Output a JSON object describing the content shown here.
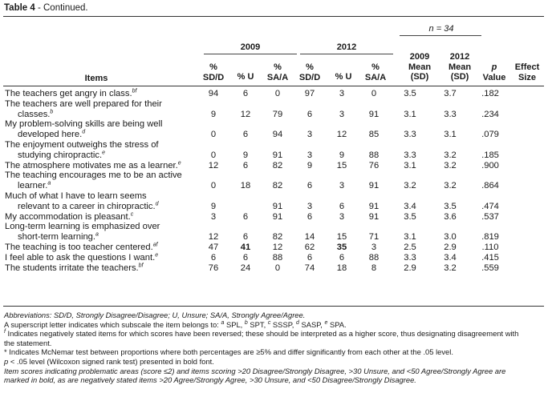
{
  "caption": {
    "label": "Table 4",
    "rest": " - Continued."
  },
  "header": {
    "n_label": "n = 34",
    "year1": "2009",
    "year2": "2012",
    "items": "Items",
    "col_sd1a": "%",
    "col_sd1b": "SD/D",
    "col_u1": "% U",
    "col_sa1a": "%",
    "col_sa1b": "SA/A",
    "col_sd2a": "%",
    "col_sd2b": "SD/D",
    "col_u2": "% U",
    "col_sa2a": "%",
    "col_sa2b": "SA/A",
    "m1a": "2009",
    "m1b": "Mean",
    "m1c": "(SD)",
    "m2a": "2012",
    "m2b": "Mean",
    "m2c": "(SD)",
    "pa": "p",
    "pb": "Value",
    "ea": "Effect",
    "eb": "Size"
  },
  "rows": [
    {
      "l1": "The teachers get angry in class.",
      "sup": "bf",
      "l2": "",
      "v": [
        "94",
        "6",
        "0",
        "97",
        "3",
        "0",
        "3.5",
        "3.7",
        ".182",
        ""
      ],
      "bold": []
    },
    {
      "l1": "The teachers are well prepared for their",
      "sup": "b",
      "l2": "classes.",
      "v": [
        "9",
        "12",
        "79",
        "6",
        "3",
        "91",
        "3.1",
        "3.3",
        ".234",
        ""
      ],
      "bold": []
    },
    {
      "l1": "My problem-solving skills are being well",
      "sup": "d",
      "l2": "developed here.",
      "v": [
        "0",
        "6",
        "94",
        "3",
        "12",
        "85",
        "3.3",
        "3.1",
        ".079",
        ""
      ],
      "bold": []
    },
    {
      "l1": "The enjoyment outweighs the stress of",
      "sup": "e",
      "l2": "studying chiropractic.",
      "v": [
        "0",
        "9",
        "91",
        "3",
        "9",
        "88",
        "3.3",
        "3.2",
        ".185",
        ""
      ],
      "bold": []
    },
    {
      "l1": "The atmosphere motivates me as a learner.",
      "sup": "e",
      "l2": "",
      "v": [
        "12",
        "6",
        "82",
        "9",
        "15",
        "76",
        "3.1",
        "3.2",
        ".900",
        ""
      ],
      "bold": []
    },
    {
      "l1": "The teaching encourages me to be an active",
      "sup": "a",
      "l2": "learner.",
      "v": [
        "0",
        "18",
        "82",
        "6",
        "3",
        "91",
        "3.2",
        "3.2",
        ".864",
        ""
      ],
      "bold": []
    },
    {
      "l1": "Much of what I have to learn seems",
      "sup": "d",
      "l2": "relevant to a career in chiropractic.",
      "v": [
        "9",
        "",
        "91",
        "3",
        "6",
        "91",
        "3.4",
        "3.5",
        ".474",
        ""
      ],
      "bold": []
    },
    {
      "l1": "My accommodation is pleasant.",
      "sup": "c",
      "l2": "",
      "v": [
        "3",
        "6",
        "91",
        "6",
        "3",
        "91",
        "3.5",
        "3.6",
        ".537",
        ""
      ],
      "bold": []
    },
    {
      "l1": "Long-term learning is emphasized over",
      "sup": "a",
      "l2": "short-term learning.",
      "v": [
        "12",
        "6",
        "82",
        "14",
        "15",
        "71",
        "3.1",
        "3.0",
        ".819",
        ""
      ],
      "bold": []
    },
    {
      "l1": "The teaching is too teacher centered.",
      "sup": "af",
      "l2": "",
      "v": [
        "47",
        "41",
        "12",
        "62",
        "35",
        "3",
        "2.5",
        "2.9",
        ".110",
        ""
      ],
      "bold": [
        1,
        4
      ]
    },
    {
      "l1": "I feel able to ask the questions I want.",
      "sup": "e",
      "l2": "",
      "v": [
        "6",
        "6",
        "88",
        "6",
        "6",
        "88",
        "3.3",
        "3.4",
        ".415",
        ""
      ],
      "bold": []
    },
    {
      "l1": "The students irritate the teachers.",
      "sup": "bf",
      "l2": "",
      "v": [
        "76",
        "24",
        "0",
        "74",
        "18",
        "8",
        "2.9",
        "3.2",
        ".559",
        ""
      ],
      "bold": []
    }
  ],
  "footnotes": {
    "abbrev": "Abbreviations: SD/D, Strongly Disagree/Disagree; U, Unsure; SA/A, Strongly Agree/Agree.",
    "subscale": "A superscript letter indicates which subscale the item belongs to: a SPL, b SPT, c SSSP, d SASP, e SPA.",
    "neg1": "f Indicates negatively stated items for which scores have been reversed; these should be interpreted as a higher score, thus designating disagreement with",
    "neg2": "the statement.",
    "mcnemar": "* Indicates McNemar test between proportions where both percentages are ≥5% and differ significantly from each other at the .05 level.",
    "pval": "p < .05 level (Wilcoxon signed rank test) presented in bold font.",
    "scores1": "Item scores indicating problematic areas (score ≤2) and items scoring >20 Disagree/Strongly Disagree, >30 Unsure, and <50 Agree/Strongly Agree are",
    "scores2": "marked in bold, as are negatively stated items >20 Agree/Strongly Agree, >30 Unsure, and <50 Disagree/Strongly Disagree."
  }
}
